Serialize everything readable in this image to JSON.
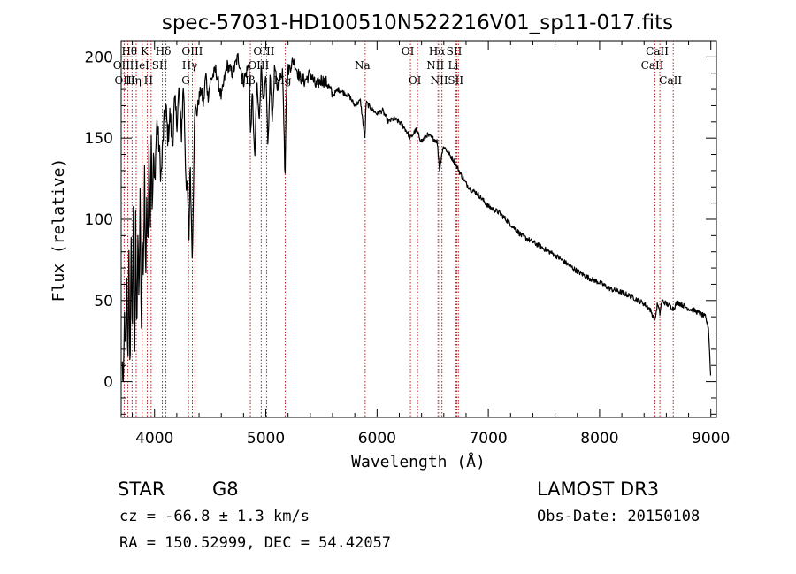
{
  "chart_data": {
    "type": "line",
    "title": "spec-57031-HD100510N522216V01_sp11-017.fits",
    "xlabel": "Wavelength (Å)",
    "ylabel": "Flux (relative)",
    "xlim": [
      3700,
      9050
    ],
    "ylim": [
      -22,
      210
    ],
    "x_ticks": [
      {
        "value": 4000,
        "label": "4000"
      },
      {
        "value": 5000,
        "label": "5000"
      },
      {
        "value": 6000,
        "label": "6000"
      },
      {
        "value": 7000,
        "label": "7000"
      },
      {
        "value": 8000,
        "label": "8000"
      },
      {
        "value": 9000,
        "label": "9000"
      }
    ],
    "y_ticks": [
      {
        "value": 0,
        "label": "0"
      },
      {
        "value": 50,
        "label": "50"
      },
      {
        "value": 100,
        "label": "100"
      },
      {
        "value": 150,
        "label": "150"
      },
      {
        "value": 200,
        "label": "200"
      }
    ],
    "line_color": "#000000",
    "marker_color": "#b22222",
    "spectrum": {
      "x": [
        3710,
        3720,
        3730,
        3740,
        3750,
        3760,
        3770,
        3780,
        3790,
        3800,
        3810,
        3820,
        3830,
        3840,
        3850,
        3860,
        3870,
        3880,
        3890,
        3900,
        3910,
        3920,
        3930,
        3940,
        3950,
        3960,
        3970,
        3980,
        3990,
        4000,
        4020,
        4040,
        4060,
        4080,
        4100,
        4120,
        4140,
        4160,
        4180,
        4200,
        4220,
        4240,
        4260,
        4280,
        4300,
        4310,
        4320,
        4330,
        4340,
        4360,
        4380,
        4400,
        4420,
        4440,
        4460,
        4480,
        4500,
        4550,
        4600,
        4650,
        4700,
        4750,
        4800,
        4850,
        4861,
        4880,
        4900,
        4920,
        4940,
        4960,
        4980,
        5000,
        5020,
        5040,
        5060,
        5080,
        5100,
        5150,
        5167,
        5172,
        5183,
        5200,
        5250,
        5300,
        5350,
        5400,
        5450,
        5500,
        5550,
        5600,
        5650,
        5700,
        5750,
        5800,
        5850,
        5890,
        5896,
        5900,
        5950,
        6000,
        6050,
        6100,
        6150,
        6200,
        6250,
        6300,
        6350,
        6400,
        6450,
        6500,
        6540,
        6563,
        6580,
        6600,
        6650,
        6700,
        6750,
        6800,
        6850,
        6900,
        6950,
        7000,
        7100,
        7200,
        7300,
        7400,
        7500,
        7600,
        7700,
        7800,
        7900,
        8000,
        8100,
        8200,
        8300,
        8400,
        8450,
        8498,
        8520,
        8542,
        8560,
        8600,
        8662,
        8700,
        8750,
        8800,
        8850,
        8900,
        8950,
        8980,
        9000
      ],
      "y": [
        10,
        -5,
        40,
        15,
        60,
        5,
        85,
        -10,
        95,
        20,
        110,
        0,
        100,
        30,
        90,
        45,
        120,
        25,
        80,
        70,
        130,
        60,
        115,
        75,
        150,
        90,
        155,
        100,
        140,
        120,
        160,
        145,
        125,
        155,
        170,
        150,
        165,
        145,
        172,
        160,
        180,
        150,
        185,
        130,
        110,
        85,
        140,
        100,
        75,
        170,
        165,
        175,
        180,
        170,
        190,
        175,
        185,
        192,
        175,
        195,
        190,
        200,
        185,
        196,
        150,
        178,
        135,
        185,
        160,
        195,
        170,
        188,
        145,
        190,
        160,
        195,
        180,
        192,
        150,
        122,
        175,
        192,
        198,
        188,
        185,
        190,
        182,
        186,
        184,
        176,
        180,
        178,
        176,
        170,
        173,
        150,
        160,
        172,
        168,
        165,
        167,
        160,
        162,
        160,
        156,
        150,
        155,
        148,
        152,
        150,
        148,
        130,
        140,
        145,
        140,
        135,
        128,
        122,
        118,
        116,
        112,
        108,
        104,
        97,
        90,
        86,
        82,
        78,
        73,
        68,
        64,
        61,
        57,
        55,
        52,
        48,
        45,
        38,
        48,
        42,
        50,
        48,
        45,
        49,
        47,
        45,
        44,
        42,
        40,
        33,
        0
      ],
      "noise": 4
    },
    "lines": [
      {
        "name": "Hθ",
        "wavelength": 3798,
        "row": 1
      },
      {
        "name": "OII",
        "wavelength": 3727,
        "row": 2
      },
      {
        "name": "OIII",
        "wavelength": 3760,
        "row": 3
      },
      {
        "name": "K",
        "wavelength": 3934,
        "row": 1
      },
      {
        "name": "HeI",
        "wavelength": 3889,
        "row": 2
      },
      {
        "name": "Hη",
        "wavelength": 3835,
        "row": 3
      },
      {
        "name": "H",
        "wavelength": 3969,
        "row": 3
      },
      {
        "name": "Hδ",
        "wavelength": 4102,
        "row": 1
      },
      {
        "name": "SII",
        "wavelength": 4070,
        "row": 2
      },
      {
        "name": "OIII",
        "wavelength": 4363,
        "row": 1
      },
      {
        "name": "Hγ",
        "wavelength": 4340,
        "row": 2
      },
      {
        "name": "G",
        "wavelength": 4305,
        "row": 3
      },
      {
        "name": "OIII",
        "wavelength": 5007,
        "row": 1
      },
      {
        "name": "OIII",
        "wavelength": 4959,
        "row": 2
      },
      {
        "name": "Hβ",
        "wavelength": 4861,
        "row": 3
      },
      {
        "name": "Mg",
        "wavelength": 5175,
        "row": 3
      },
      {
        "name": "Na",
        "wavelength": 5893,
        "row": 2
      },
      {
        "name": "OI",
        "wavelength": 6300,
        "row": 1
      },
      {
        "name": "OI",
        "wavelength": 6364,
        "row": 3
      },
      {
        "name": "Hα",
        "wavelength": 6563,
        "row": 1
      },
      {
        "name": "NII",
        "wavelength": 6548,
        "row": 2
      },
      {
        "name": "NII",
        "wavelength": 6583,
        "row": 3
      },
      {
        "name": "SII",
        "wavelength": 6717,
        "row": 1
      },
      {
        "name": "Li",
        "wavelength": 6708,
        "row": 2
      },
      {
        "name": "SII",
        "wavelength": 6731,
        "row": 3
      },
      {
        "name": "CaII",
        "wavelength": 8542,
        "row": 1
      },
      {
        "name": "CaII",
        "wavelength": 8498,
        "row": 2
      },
      {
        "name": "CaII",
        "wavelength": 8662,
        "row": 3
      }
    ]
  },
  "info": {
    "class": "STAR",
    "subclass": "G8",
    "survey": "LAMOST DR3",
    "cz": "cz = -66.8 ± 1.3 km/s",
    "obs_date": "Obs-Date: 20150108",
    "radec": "RA = 150.52999, DEC =  54.42057"
  }
}
